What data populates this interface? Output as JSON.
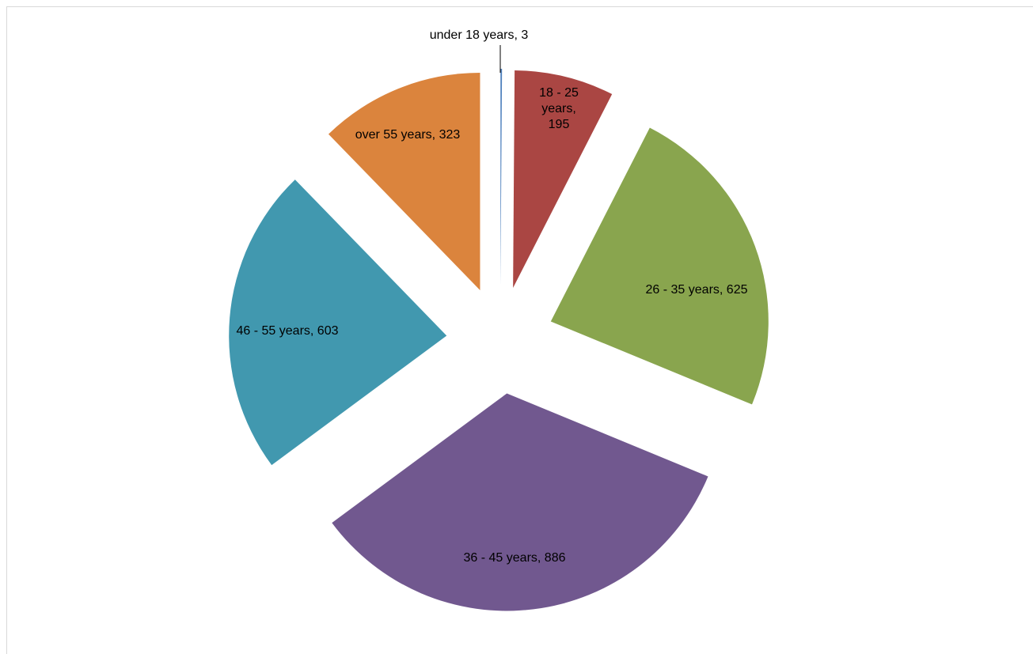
{
  "chart_data": {
    "type": "pie",
    "categories": [
      "under 18 years",
      "18 - 25 years",
      "26 - 35 years",
      "36 - 45 years",
      "46 - 55 years",
      "over 55 years"
    ],
    "values": [
      3,
      195,
      625,
      886,
      603,
      323
    ],
    "value_labels": [
      "under 18 years, 3",
      "18 - 25 years, 195",
      "26 - 35 years, 625",
      "36 - 45 years, 886",
      "46 - 55 years, 603",
      "over 55 years, 323"
    ],
    "colors": [
      "#4f81bd",
      "#aa4643",
      "#89a54e",
      "#71588f",
      "#4198af",
      "#db843d"
    ]
  }
}
